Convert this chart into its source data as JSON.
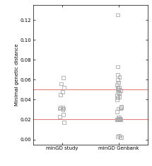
{
  "title": "",
  "ylabel": "Minimal genetic distance",
  "xlabels": [
    "minGD study",
    "minGD Genbank"
  ],
  "x_positions": [
    1,
    2
  ],
  "ylim": [
    -0.005,
    0.135
  ],
  "yticks": [
    0.0,
    0.02,
    0.04,
    0.06,
    0.08,
    0.1,
    0.12
  ],
  "hlines": [
    0.05,
    0.02
  ],
  "hline_color": "#e88080",
  "hline_linewidth": 0.8,
  "study_points": [
    0.056,
    0.052,
    0.062,
    0.048,
    0.045,
    0.032,
    0.031,
    0.031,
    0.032,
    0.03,
    0.023,
    0.017,
    0.025
  ],
  "genbank_points": [
    0.125,
    0.073,
    0.065,
    0.052,
    0.052,
    0.057,
    0.06,
    0.063,
    0.055,
    0.052,
    0.05,
    0.05,
    0.049,
    0.048,
    0.047,
    0.046,
    0.044,
    0.043,
    0.042,
    0.04,
    0.033,
    0.032,
    0.031,
    0.031,
    0.028,
    0.021,
    0.02,
    0.02,
    0.02,
    0.02,
    0.02,
    0.02,
    0.021,
    0.022,
    0.022,
    0.004,
    0.003,
    0.002,
    0.002
  ],
  "marker_style": "s",
  "marker_size": 3.5,
  "marker_color": "none",
  "marker_edgecolor": "#aaaaaa",
  "marker_linewidth": 0.6,
  "background_color": "#ffffff",
  "jitter_seed": 42,
  "jitter_scale": 0.04
}
